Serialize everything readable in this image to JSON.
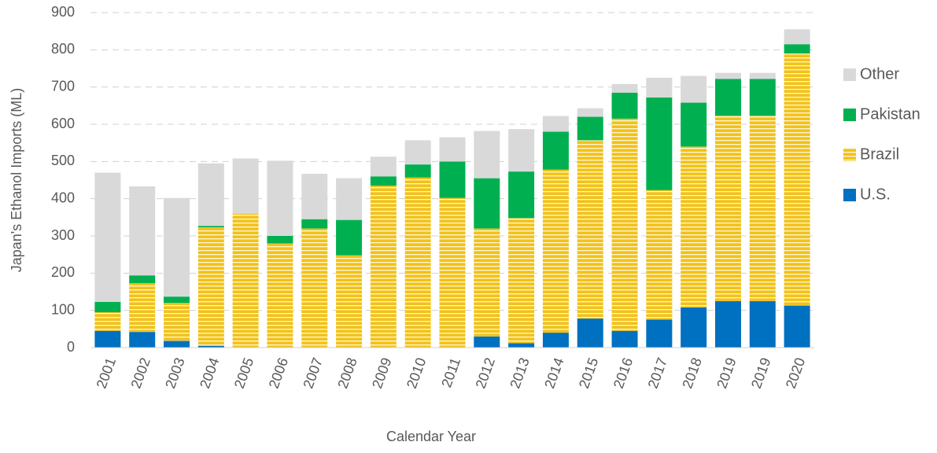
{
  "chart_data": {
    "type": "stacked_bar",
    "x_label": "Calendar Year",
    "y_label": "Japan's Ethanol Imports (ML)",
    "categories": [
      "2001",
      "2002",
      "2003",
      "2004",
      "2005",
      "2006",
      "2007",
      "2008",
      "2009",
      "2010",
      "2011",
      "2012",
      "2013",
      "2014",
      "2015",
      "2016",
      "2017",
      "2018",
      "2019",
      "2019",
      "2020"
    ],
    "series": [
      {
        "name": "U.S.",
        "color": "#0070c0",
        "values": [
          45,
          42,
          18,
          5,
          0,
          0,
          0,
          0,
          0,
          0,
          0,
          30,
          12,
          40,
          78,
          45,
          75,
          108,
          125,
          125,
          113
        ]
      },
      {
        "name": "Brazil",
        "color": "#f2c21a",
        "pattern": "striped",
        "values": [
          50,
          131,
          102,
          318,
          360,
          280,
          320,
          248,
          435,
          457,
          402,
          290,
          336,
          438,
          479,
          570,
          348,
          432,
          498,
          498,
          677
        ]
      },
      {
        "name": "Pakistan",
        "color": "#00b050",
        "values": [
          28,
          21,
          17,
          4,
          0,
          20,
          25,
          95,
          25,
          35,
          98,
          135,
          125,
          102,
          63,
          70,
          249,
          118,
          99,
          99,
          25
        ]
      },
      {
        "name": "Other",
        "color": "#d9d9d9",
        "values": [
          347,
          239,
          265,
          168,
          148,
          202,
          122,
          112,
          53,
          65,
          65,
          127,
          114,
          42,
          23,
          23,
          53,
          72,
          16,
          16,
          40
        ]
      }
    ],
    "ylim": [
      0,
      900
    ],
    "yticks": [
      0,
      100,
      200,
      300,
      400,
      500,
      600,
      700,
      800,
      900
    ],
    "grid": true,
    "legend": "right"
  }
}
